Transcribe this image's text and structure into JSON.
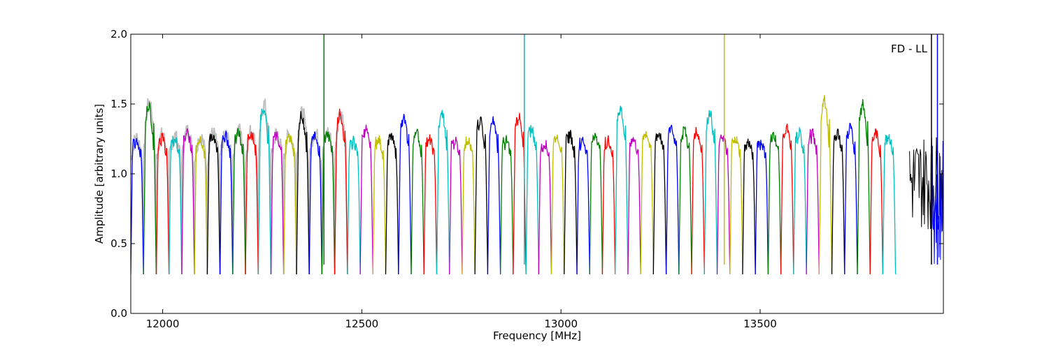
{
  "chart_data": {
    "type": "line",
    "title": "",
    "xlabel": "Frequency [MHz]",
    "ylabel": "Amplitude [arbitrary units]",
    "annotation": "FD - LL",
    "xlim": [
      11920,
      13960
    ],
    "ylim": [
      0.0,
      2.0
    ],
    "xticks": [
      12000,
      12500,
      13000,
      13500
    ],
    "xtick_labels": [
      "12000",
      "12500",
      "13000",
      "13500"
    ],
    "yticks": [
      0.0,
      0.5,
      1.0,
      1.5,
      2.0
    ],
    "ytick_labels": [
      "0.0",
      "0.5",
      "1.0",
      "1.5",
      "2.0"
    ],
    "grid": false,
    "legend": "none",
    "background_trace_color": "#bfbfbf",
    "segment_colors": [
      "#0000ff",
      "#008000",
      "#ff0000",
      "#00bfbf",
      "#bf00bf",
      "#bfbf00",
      "#000000"
    ],
    "segment_start_mhz": 11920,
    "segment_width_mhz": 32,
    "segment_peaks": [
      1.25,
      1.5,
      1.27,
      1.26,
      1.3,
      1.26,
      1.28,
      1.27,
      1.31,
      1.3,
      1.48,
      1.28,
      1.27,
      1.42,
      1.29,
      1.29,
      1.43,
      1.24,
      1.33,
      1.25,
      1.27,
      1.4,
      1.3,
      1.25,
      1.44,
      1.25,
      1.25,
      1.4,
      1.4,
      1.25,
      1.42,
      1.33,
      1.23,
      1.28,
      1.29,
      1.25,
      1.3,
      1.25,
      1.48,
      1.25,
      1.3,
      1.3,
      1.34,
      1.32,
      1.3,
      1.45,
      1.27,
      1.26,
      1.23,
      1.23,
      1.29,
      1.34,
      1.3,
      1.3,
      1.54,
      1.3,
      1.33,
      1.52,
      1.3,
      1.28
    ],
    "spikes": [
      {
        "x": 12405,
        "y_top": 2.0,
        "color": "#008000"
      },
      {
        "x": 12908,
        "y_top": 2.0,
        "color": "#00bfbf"
      },
      {
        "x": 13410,
        "y_top": 2.0,
        "color": "#bfbf00"
      },
      {
        "x": 13930,
        "y_top": 2.0,
        "color": "#000000"
      },
      {
        "x": 13945,
        "y_top": 2.0,
        "color": "#0000ff"
      }
    ],
    "trough_level": 0.28,
    "baseline_level": 1.1
  }
}
